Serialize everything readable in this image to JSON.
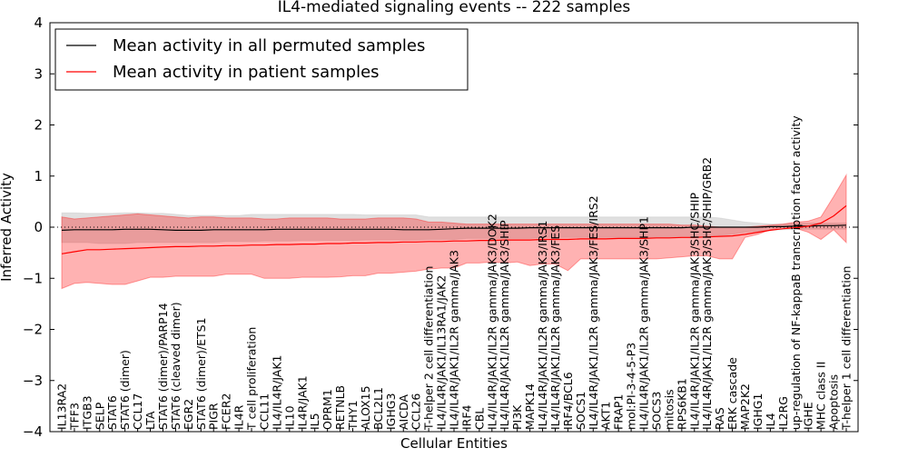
{
  "chart_data": {
    "type": "line",
    "title": "IL4-mediated signaling events -- 222 samples",
    "xlabel": "Cellular Entities",
    "ylabel": "Inferred Activity",
    "ylim": [
      -4,
      4
    ],
    "yticks": [
      -4,
      -3,
      -2,
      -1,
      0,
      1,
      2,
      3,
      4
    ],
    "legend_position": "top-left",
    "colors": {
      "permuted_line": "#000000",
      "permuted_band": "#bbbbbb",
      "patient_line": "#ff0000",
      "patient_band": "#ff0000"
    },
    "categories": [
      "IL13RA2",
      "TFF3",
      "ITGB3",
      "SELP",
      "STAT6",
      "STAT6 (dimer)",
      "CCL17",
      "LTA",
      "STAT6 (dimer)/PARP14",
      "STAT6 (cleaved dimer)",
      "EGR2",
      "STAT6 (dimer)/ETS1",
      "PIGR",
      "FCER2",
      "IL4R",
      "T cell proliferation",
      "CCL11",
      "IL4/IL4R/JAK1",
      "IL10",
      "IL4R/JAK1",
      "IL5",
      "OPRM1",
      "RETNLB",
      "THY1",
      "ALOX15",
      "BCL2L1",
      "IGHG3",
      "AICDA",
      "CCL26",
      "T-helper 2 cell differentiation",
      "IL4/IL4R/JAK1/IL13RA1/JAK2",
      "IL4/IL4R/JAK1/IL2R gamma/JAK3",
      "IRF4",
      "CBL",
      "IL4/IL4R/JAK1/IL2R gamma/JAK3/DOK2",
      "IL4/IL4R/JAK1/IL2R gamma/JAK3/SHIP",
      "PI3K",
      "MAPK14",
      "IL4/IL4R/JAK1/IL2R gamma/JAK3/IRS1",
      "IL4/IL4R/JAK1/IL2R gamma/JAK3/FES",
      "IRF4/BCL6",
      "SOCS1",
      "IL4/IL4R/JAK1/IL2R gamma/JAK3/FES/IRS2",
      "AKT1",
      "FRAP1",
      "mol:PI-3-4-5-P3",
      "IL4/IL4R/JAK1/IL2R gamma/JAK3/SHP1",
      "SOCS3",
      "mitosis",
      "RPS6KB1",
      "IL4/IL4R/JAK1/IL2R gamma/JAK3/SHC/SHIP",
      "IL4/IL4R/JAK1/IL2R gamma/JAK3/SHC/SHIP/GRB2",
      "RAS",
      "ERK cascade",
      "MAP2K2",
      "IGHG1",
      "IL4",
      "IL2RG",
      "up-regulation of NF-kappaB transcription factor activity",
      "IGHE",
      "MHC class II",
      "Apoptosis",
      "T-helper 1 cell differentiation"
    ],
    "series": [
      {
        "name": "Mean activity in all permuted samples",
        "values": [
          -0.06,
          -0.05,
          -0.05,
          -0.05,
          -0.05,
          -0.04,
          -0.04,
          -0.04,
          -0.05,
          -0.06,
          -0.06,
          -0.06,
          -0.05,
          -0.05,
          -0.05,
          -0.05,
          -0.05,
          -0.04,
          -0.04,
          -0.04,
          -0.04,
          -0.04,
          -0.04,
          -0.04,
          -0.04,
          -0.04,
          -0.04,
          -0.05,
          -0.05,
          -0.05,
          -0.04,
          -0.03,
          -0.02,
          -0.02,
          -0.02,
          -0.02,
          -0.02,
          -0.01,
          -0.01,
          -0.01,
          -0.01,
          -0.01,
          -0.01,
          -0.01,
          -0.01,
          -0.01,
          -0.01,
          -0.01,
          -0.01,
          -0.01,
          0.0,
          0.0,
          0.0,
          0.0,
          0.0,
          0.0,
          0.01,
          0.01,
          0.02,
          0.02,
          0.03,
          0.03,
          0.04
        ],
        "lower": [
          -0.3,
          -0.3,
          -0.3,
          -0.32,
          -0.32,
          -0.32,
          -0.3,
          -0.3,
          -0.3,
          -0.3,
          -0.3,
          -0.3,
          -0.3,
          -0.28,
          -0.28,
          -0.28,
          -0.27,
          -0.27,
          -0.27,
          -0.26,
          -0.26,
          -0.26,
          -0.26,
          -0.26,
          -0.25,
          -0.25,
          -0.25,
          -0.25,
          -0.25,
          -0.24,
          -0.24,
          -0.24,
          -0.22,
          -0.22,
          -0.22,
          -0.22,
          -0.22,
          -0.22,
          -0.2,
          -0.2,
          -0.2,
          -0.2,
          -0.2,
          -0.2,
          -0.2,
          -0.2,
          -0.2,
          -0.2,
          -0.2,
          -0.2,
          -0.2,
          -0.18,
          -0.16,
          -0.14,
          -0.1,
          -0.08,
          -0.06,
          -0.05,
          -0.04,
          -0.04,
          -0.04,
          -0.04,
          -0.04
        ],
        "upper": [
          0.28,
          0.28,
          0.27,
          0.27,
          0.27,
          0.28,
          0.28,
          0.27,
          0.27,
          0.25,
          0.23,
          0.23,
          0.23,
          0.23,
          0.23,
          0.25,
          0.25,
          0.25,
          0.25,
          0.25,
          0.25,
          0.25,
          0.25,
          0.25,
          0.24,
          0.24,
          0.24,
          0.24,
          0.24,
          0.2,
          0.2,
          0.2,
          0.2,
          0.2,
          0.2,
          0.2,
          0.2,
          0.2,
          0.2,
          0.2,
          0.2,
          0.2,
          0.2,
          0.2,
          0.2,
          0.2,
          0.2,
          0.2,
          0.2,
          0.2,
          0.2,
          0.2,
          0.18,
          0.14,
          0.1,
          0.08,
          0.06,
          0.06,
          0.08,
          0.08,
          0.08,
          0.08,
          0.08
        ]
      },
      {
        "name": "Mean activity in patient samples",
        "values": [
          -0.52,
          -0.48,
          -0.44,
          -0.44,
          -0.43,
          -0.42,
          -0.41,
          -0.4,
          -0.39,
          -0.38,
          -0.38,
          -0.37,
          -0.37,
          -0.36,
          -0.36,
          -0.35,
          -0.35,
          -0.34,
          -0.34,
          -0.33,
          -0.33,
          -0.32,
          -0.32,
          -0.31,
          -0.31,
          -0.3,
          -0.3,
          -0.29,
          -0.29,
          -0.28,
          -0.28,
          -0.27,
          -0.27,
          -0.26,
          -0.26,
          -0.25,
          -0.25,
          -0.25,
          -0.24,
          -0.24,
          -0.24,
          -0.23,
          -0.23,
          -0.23,
          -0.22,
          -0.22,
          -0.22,
          -0.21,
          -0.21,
          -0.2,
          -0.2,
          -0.19,
          -0.18,
          -0.17,
          -0.14,
          -0.1,
          -0.06,
          -0.03,
          -0.01,
          0.02,
          0.08,
          0.22,
          0.42
        ],
        "lower": [
          -1.2,
          -1.1,
          -1.08,
          -1.1,
          -1.12,
          -1.12,
          -1.05,
          -0.98,
          -0.98,
          -0.96,
          -0.96,
          -0.96,
          -0.96,
          -0.92,
          -0.92,
          -0.92,
          -1.0,
          -1.0,
          -1.0,
          -0.98,
          -0.98,
          -0.98,
          -0.97,
          -0.95,
          -0.95,
          -0.9,
          -0.9,
          -0.88,
          -0.86,
          -0.82,
          -0.8,
          -0.8,
          -0.7,
          -0.7,
          -0.68,
          -0.7,
          -0.68,
          -0.75,
          -0.72,
          -0.72,
          -0.85,
          -0.62,
          -0.62,
          -0.62,
          -0.62,
          -0.62,
          -0.62,
          -0.62,
          -0.6,
          -0.58,
          -0.56,
          -0.56,
          -0.62,
          -0.62,
          -0.2,
          -0.14,
          -0.05,
          0.0,
          -0.02,
          -0.1,
          -0.24,
          -0.05,
          -0.3
        ],
        "upper": [
          0.2,
          0.16,
          0.18,
          0.2,
          0.22,
          0.24,
          0.26,
          0.24,
          0.22,
          0.2,
          0.18,
          0.2,
          0.2,
          0.18,
          0.18,
          0.18,
          0.16,
          0.16,
          0.18,
          0.18,
          0.18,
          0.18,
          0.16,
          0.16,
          0.16,
          0.18,
          0.18,
          0.18,
          0.16,
          0.1,
          0.1,
          0.08,
          0.06,
          0.06,
          0.06,
          0.06,
          0.06,
          0.06,
          0.06,
          0.06,
          0.06,
          0.06,
          0.06,
          0.06,
          0.06,
          0.06,
          0.06,
          0.06,
          0.06,
          0.04,
          0.04,
          0.02,
          0.0,
          0.0,
          0.0,
          0.02,
          0.04,
          0.06,
          0.1,
          0.12,
          0.2,
          0.6,
          1.02
        ]
      }
    ]
  }
}
